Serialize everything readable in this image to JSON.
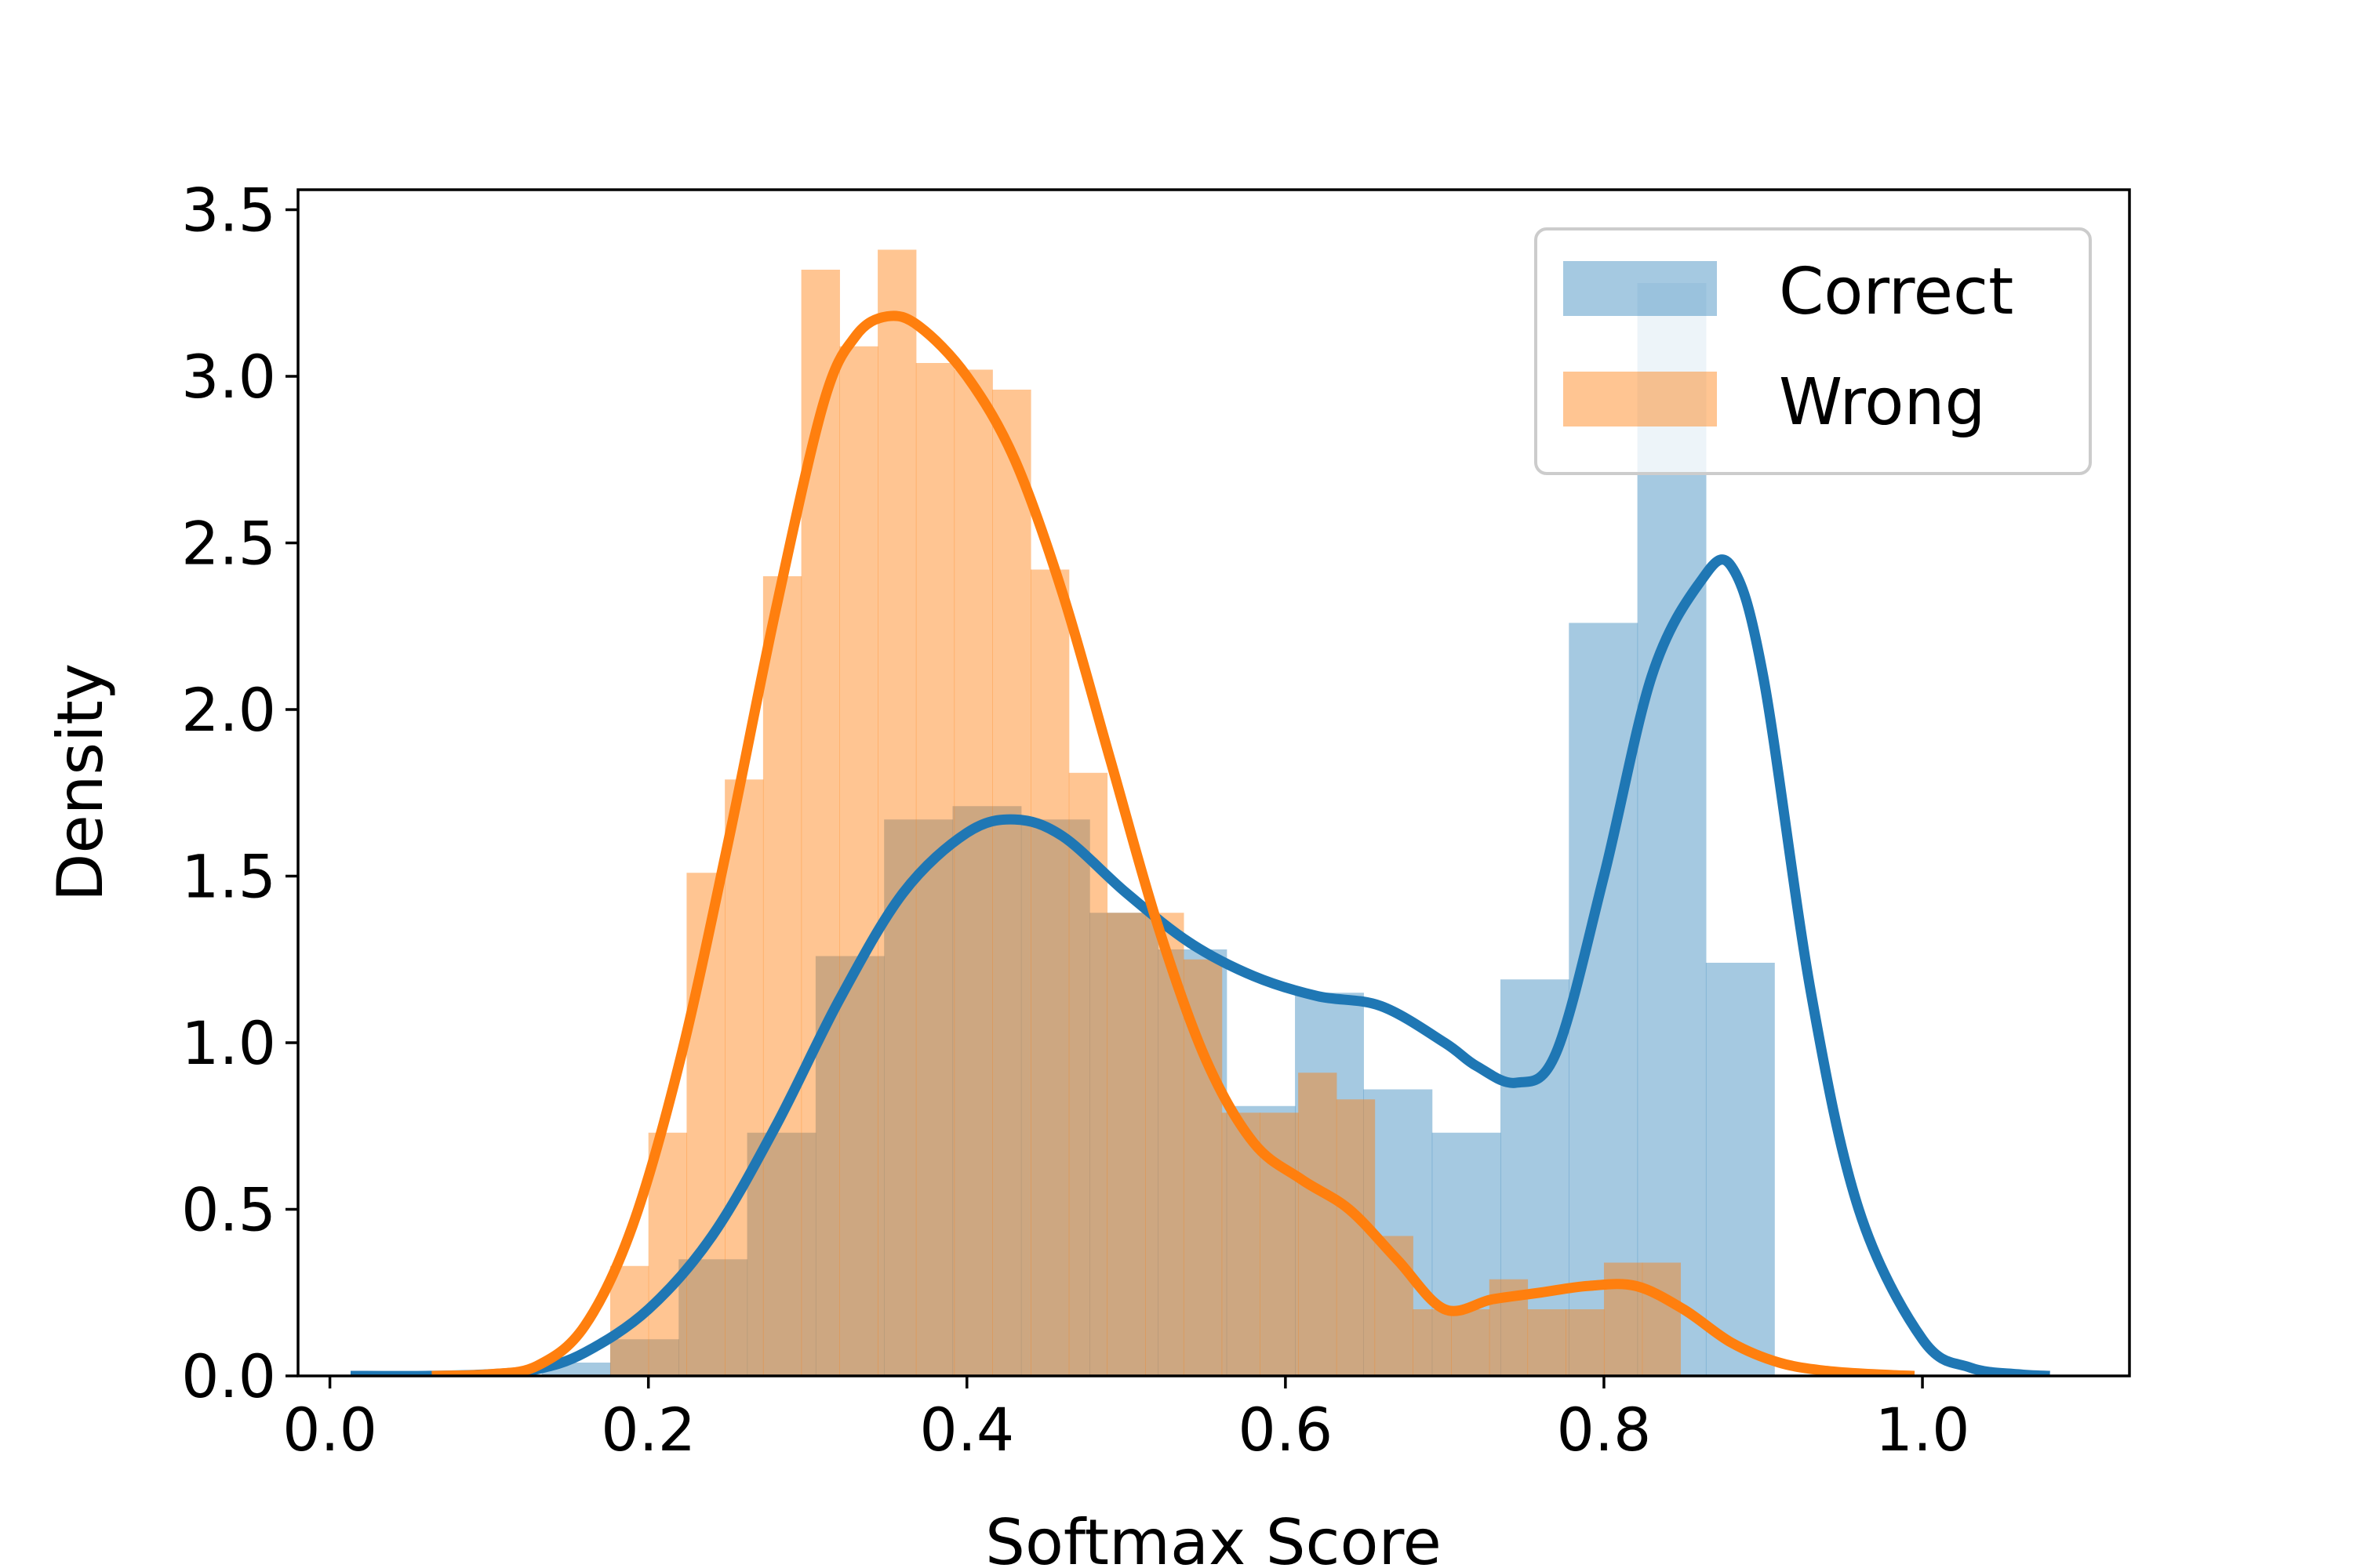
{
  "chart_data": {
    "type": "bar",
    "title": "",
    "xlabel": "Softmax Score",
    "ylabel": "Density",
    "xlim": [
      -0.02,
      1.13
    ],
    "ylim": [
      0,
      3.56
    ],
    "xticks": [
      0.0,
      0.2,
      0.4,
      0.6,
      0.8,
      1.0
    ],
    "xtick_labels": [
      "0.0",
      "0.2",
      "0.4",
      "0.6",
      "0.8",
      "1.0"
    ],
    "yticks": [
      0.0,
      0.5,
      1.0,
      1.5,
      2.0,
      2.5,
      3.0,
      3.5
    ],
    "ytick_labels": [
      "0.0",
      "0.5",
      "1.0",
      "1.5",
      "2.0",
      "2.5",
      "3.0",
      "3.5"
    ],
    "grid": false,
    "legend": {
      "position": "top-right"
    },
    "colors": {
      "correct": "#1f77b4",
      "wrong": "#ff7f0e",
      "correct_hist": "rgba(31,119,180,0.40)",
      "wrong_hist": "rgba(255,127,14,0.45)"
    },
    "series": [
      {
        "name": "Correct",
        "histogram": {
          "bin_edges": [
            0.133,
            0.176,
            0.219,
            0.262,
            0.305,
            0.348,
            0.391,
            0.434,
            0.477,
            0.52,
            0.563,
            0.606,
            0.649,
            0.692,
            0.735,
            0.778,
            0.821,
            0.864,
            0.907,
            0.95
          ],
          "values": [
            0.04,
            0.11,
            0.35,
            0.73,
            1.26,
            1.67,
            1.71,
            1.67,
            1.39,
            1.28,
            0.81,
            1.15,
            0.86,
            0.73,
            1.19,
            2.26,
            3.28,
            1.24,
            0.0
          ]
        },
        "kde": {
          "x": [
            0.013,
            0.06,
            0.1,
            0.13,
            0.16,
            0.2,
            0.24,
            0.28,
            0.32,
            0.36,
            0.4,
            0.43,
            0.46,
            0.5,
            0.54,
            0.58,
            0.62,
            0.66,
            0.7,
            0.72,
            0.745,
            0.77,
            0.8,
            0.83,
            0.86,
            0.88,
            0.9,
            0.93,
            0.96,
            1.0,
            1.03,
            1.06,
            1.08
          ],
          "y": [
            0.0,
            0.0,
            0.005,
            0.02,
            0.07,
            0.2,
            0.42,
            0.75,
            1.13,
            1.45,
            1.63,
            1.67,
            1.62,
            1.45,
            1.3,
            1.2,
            1.14,
            1.11,
            1.0,
            0.93,
            0.88,
            0.97,
            1.5,
            2.1,
            2.38,
            2.43,
            2.1,
            1.15,
            0.5,
            0.11,
            0.025,
            0.005,
            0.0
          ]
        }
      },
      {
        "name": "Wrong",
        "histogram": {
          "bin_edges": [
            0.176,
            0.2,
            0.224,
            0.248,
            0.272,
            0.296,
            0.32,
            0.344,
            0.368,
            0.392,
            0.416,
            0.44,
            0.464,
            0.488,
            0.512,
            0.536,
            0.56,
            0.584,
            0.608,
            0.632,
            0.656,
            0.68,
            0.704,
            0.728,
            0.752,
            0.776,
            0.8,
            0.824,
            0.848
          ],
          "values": [
            0.33,
            0.73,
            1.51,
            1.79,
            2.4,
            3.32,
            3.09,
            3.38,
            3.04,
            3.02,
            2.96,
            2.42,
            1.81,
            1.39,
            1.39,
            1.25,
            0.79,
            0.79,
            0.91,
            0.83,
            0.42,
            0.2,
            0.2,
            0.29,
            0.2,
            0.2,
            0.34,
            0.34
          ]
        },
        "kde": {
          "x": [
            0.064,
            0.1,
            0.13,
            0.16,
            0.19,
            0.22,
            0.25,
            0.28,
            0.31,
            0.33,
            0.35,
            0.37,
            0.4,
            0.43,
            0.46,
            0.49,
            0.52,
            0.55,
            0.58,
            0.61,
            0.64,
            0.67,
            0.7,
            0.73,
            0.76,
            0.79,
            0.82,
            0.85,
            0.88,
            0.91,
            0.94,
            0.97,
            0.995
          ],
          "y": [
            0.0,
            0.005,
            0.03,
            0.15,
            0.45,
            0.95,
            1.6,
            2.3,
            2.92,
            3.12,
            3.18,
            3.15,
            3.0,
            2.75,
            2.35,
            1.85,
            1.35,
            0.95,
            0.7,
            0.59,
            0.5,
            0.35,
            0.2,
            0.23,
            0.25,
            0.27,
            0.27,
            0.2,
            0.1,
            0.04,
            0.015,
            0.005,
            0.0
          ]
        }
      }
    ]
  }
}
